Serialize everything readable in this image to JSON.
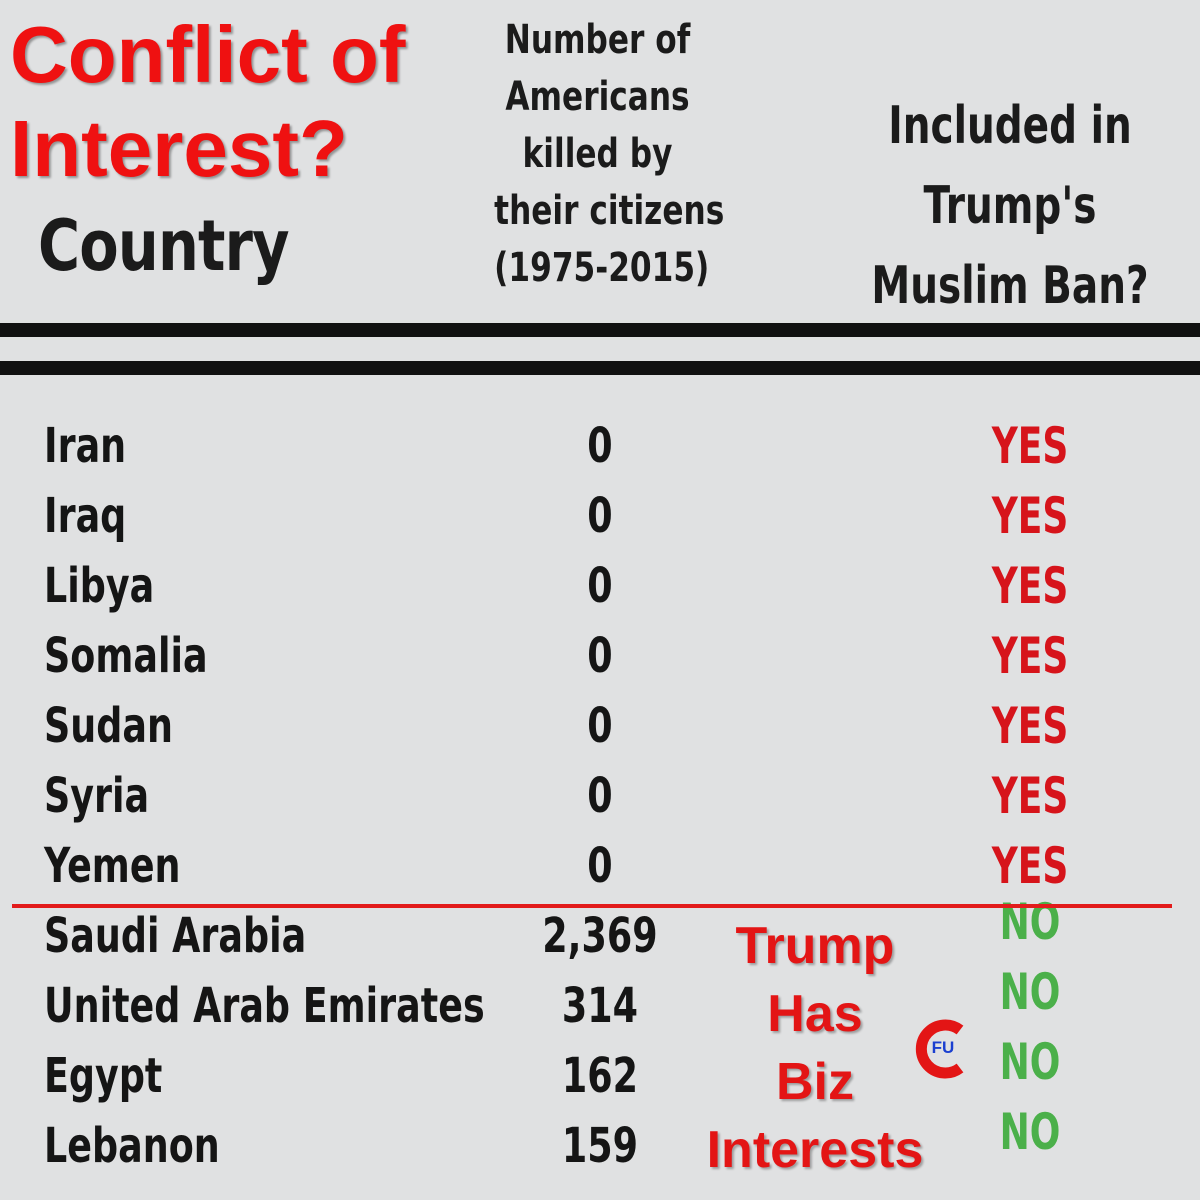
{
  "headline": {
    "line1": "Conflict of",
    "line2": "Interest?"
  },
  "columns": {
    "country": "Country",
    "killed": [
      "Number of",
      "Americans",
      "killed by",
      "their citizens",
      "(1975-2015)"
    ],
    "ban": [
      "Included in",
      "Trump's",
      "Muslim Ban?"
    ]
  },
  "rows": [
    {
      "country": "Iran",
      "killed": "0",
      "ban": "YES"
    },
    {
      "country": "Iraq",
      "killed": "0",
      "ban": "YES"
    },
    {
      "country": "Libya",
      "killed": "0",
      "ban": "YES"
    },
    {
      "country": "Somalia",
      "killed": "0",
      "ban": "YES"
    },
    {
      "country": "Sudan",
      "killed": "0",
      "ban": "YES"
    },
    {
      "country": "Syria",
      "killed": "0",
      "ban": "YES"
    },
    {
      "country": "Yemen",
      "killed": "0",
      "ban": "YES"
    },
    {
      "country": "Saudi Arabia",
      "killed": "2,369",
      "ban": "NO"
    },
    {
      "country": "United Arab Emirates",
      "killed": "314",
      "ban": "NO"
    },
    {
      "country": "Egypt",
      "killed": "162",
      "ban": "NO"
    },
    {
      "country": "Lebanon",
      "killed": "159",
      "ban": "NO"
    }
  ],
  "annotation": [
    "Trump",
    "Has",
    "Biz",
    "Interests"
  ],
  "logo": {
    "letters": "FU",
    "icon": "cfu-logo-icon"
  },
  "colors": {
    "headline": "#ef1111",
    "yes": "#d6141b",
    "no": "#4bb04a",
    "background": "#e0e1e2"
  }
}
